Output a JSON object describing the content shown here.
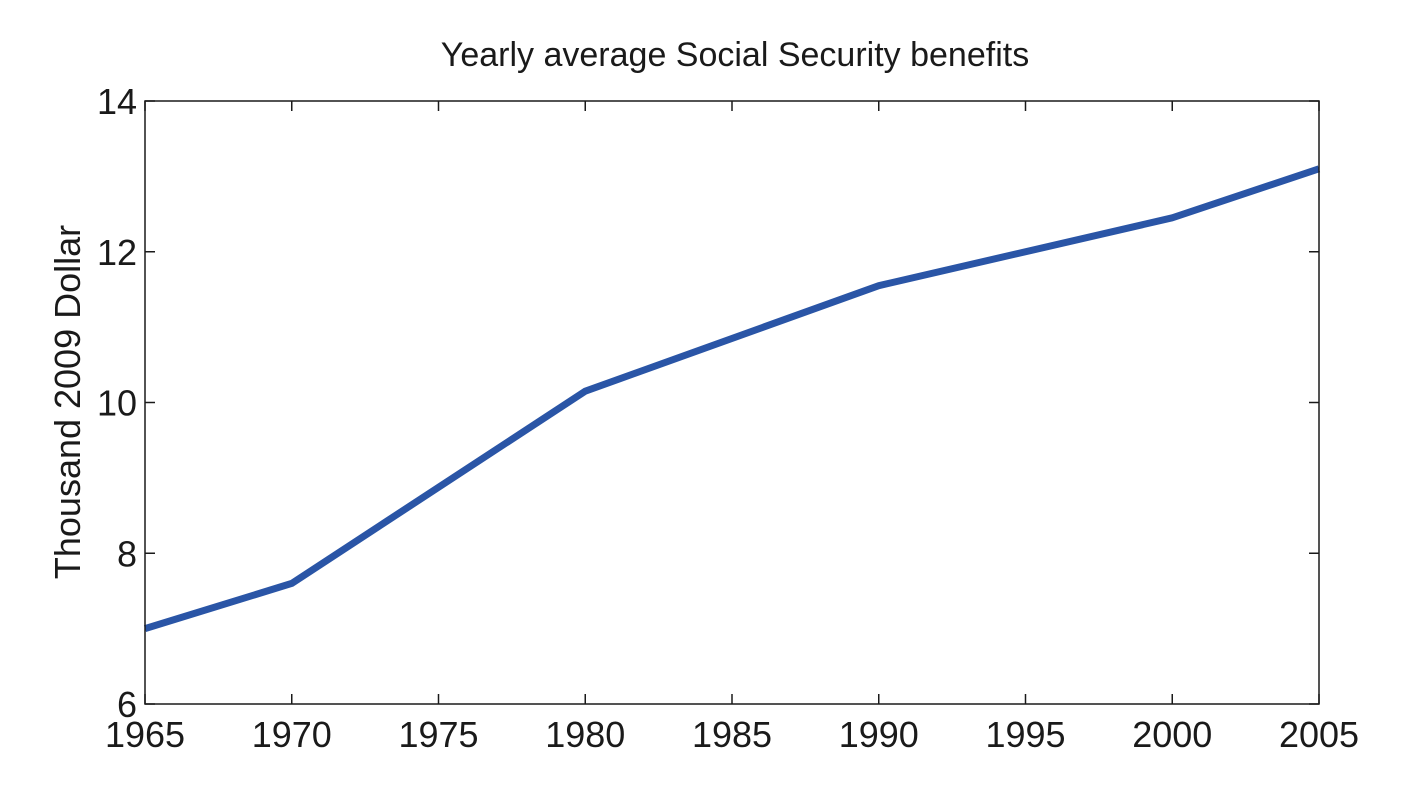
{
  "chart_data": {
    "type": "line",
    "title": "Yearly average Social Security benefits",
    "xlabel": "",
    "ylabel": "Thousand 2009 Dollar",
    "xlim": [
      1965,
      2005
    ],
    "ylim": [
      6,
      14
    ],
    "xticks": [
      1965,
      1970,
      1975,
      1980,
      1985,
      1990,
      1995,
      2000,
      2005
    ],
    "yticks": [
      6,
      8,
      10,
      12,
      14
    ],
    "grid": false,
    "series": [
      {
        "color": "#2a55a6",
        "x": [
          1965,
          1970,
          1980,
          1990,
          2000,
          2005
        ],
        "y": [
          7.0,
          7.6,
          10.15,
          11.55,
          12.45,
          13.1
        ]
      }
    ]
  }
}
